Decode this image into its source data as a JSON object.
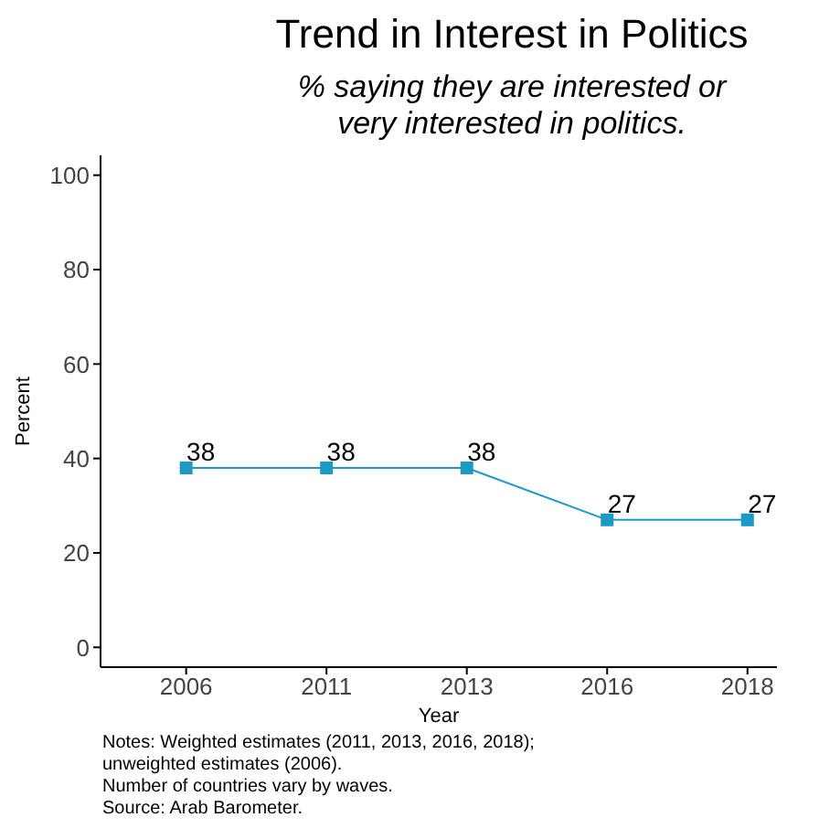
{
  "chart_data": {
    "type": "line",
    "title": "Trend in Interest in Politics",
    "subtitle": "% saying they are interested or\nvery interested in politics.",
    "xlabel": "Year",
    "ylabel": "Percent",
    "categories": [
      "2006",
      "2011",
      "2013",
      "2016",
      "2018"
    ],
    "series": [
      {
        "color": "#1b9bc4",
        "values": [
          38,
          38,
          38,
          27,
          27
        ]
      }
    ],
    "ylim": [
      -4.2,
      104.2
    ],
    "yticks": [
      0,
      20,
      40,
      60,
      80,
      100
    ],
    "grid": false,
    "legend": false,
    "marker": "square",
    "data_labels": true,
    "annotations": [
      "Notes: Weighted estimates (2011, 2013, 2016, 2018);\nunweighted estimates (2006).\nNumber of countries vary by waves.\nSource: Arab Barometer."
    ]
  }
}
